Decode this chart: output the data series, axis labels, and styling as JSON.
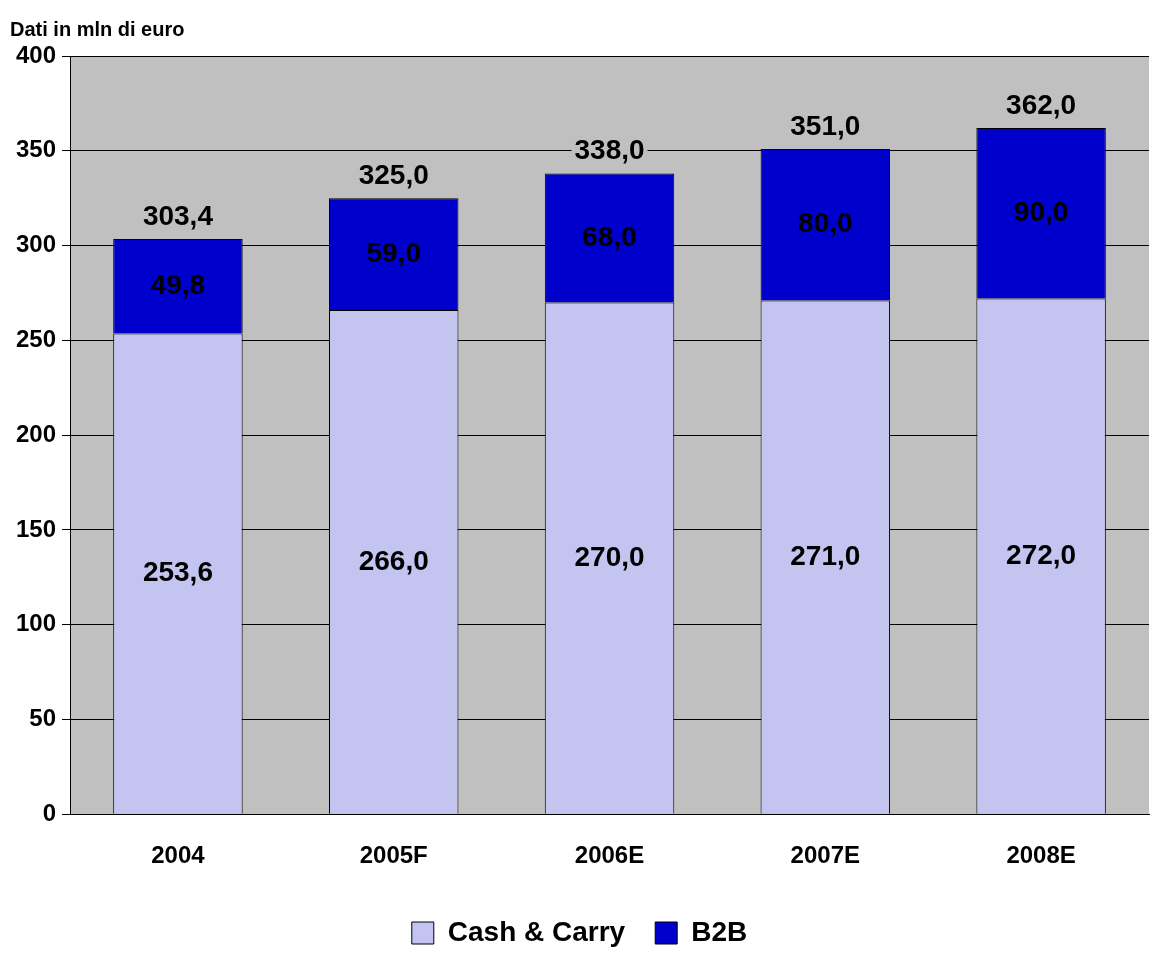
{
  "chart_data": {
    "type": "bar",
    "ylabel": "Dati in mln di euro",
    "stacked": true,
    "categories": [
      "2004",
      "2005F",
      "2006E",
      "2007E",
      "2008E"
    ],
    "series": [
      {
        "name": "Cash & Carry",
        "color": "#c4c4f0",
        "values": [
          253.6,
          266.0,
          270.0,
          271.0,
          272.0
        ],
        "value_labels": [
          "253,6",
          "266,0",
          "270,0",
          "271,0",
          "272,0"
        ]
      },
      {
        "name": "B2B",
        "color": "#0000cc",
        "values": [
          49.8,
          59.0,
          68.0,
          80.0,
          90.0
        ],
        "value_labels": [
          "49,8",
          "59,0",
          "68,0",
          "80,0",
          "90,0"
        ]
      }
    ],
    "totals": [
      "303,4",
      "325,0",
      "338,0",
      "351,0",
      "362,0"
    ],
    "ylim": [
      0,
      400
    ],
    "yticks": [
      0,
      50,
      100,
      150,
      200,
      250,
      300,
      350,
      400
    ],
    "grid": "y",
    "legend": "bottom"
  }
}
